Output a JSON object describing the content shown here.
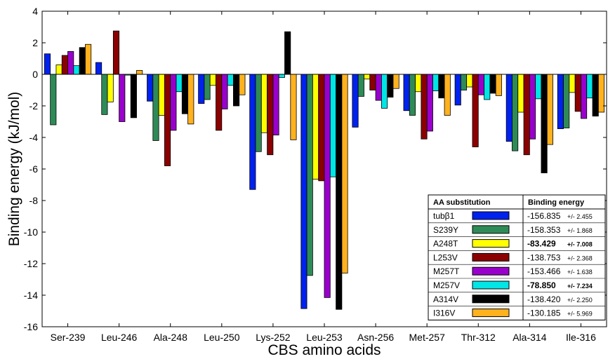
{
  "chart_data": {
    "type": "bar",
    "xlabel": "CBS amino acids",
    "ylabel": "Binding energy (kJ/mol)",
    "ylim": [
      -16,
      4
    ],
    "yticks": [
      4,
      2,
      0,
      -2,
      -4,
      -6,
      -8,
      -10,
      -12,
      -14,
      -16
    ],
    "grid": false,
    "categories": [
      "Ser-239",
      "Leu-246",
      "Ala-248",
      "Leu-250",
      "Lys-252",
      "Leu-253",
      "Asn-256",
      "Met-257",
      "Thr-312",
      "Ala-314",
      "Ile-316"
    ],
    "series": [
      {
        "name": "tubβ1",
        "color": "#0022ee",
        "values": [
          1.3,
          0.75,
          -1.7,
          -1.85,
          -7.3,
          -14.85,
          -3.35,
          -2.3,
          -1.95,
          -4.25,
          -3.45
        ]
      },
      {
        "name": "S239Y",
        "color": "#2e8b57",
        "values": [
          -3.2,
          -2.55,
          -4.2,
          -1.6,
          -4.9,
          -12.75,
          -1.4,
          -2.6,
          -1.0,
          -4.85,
          -3.4
        ]
      },
      {
        "name": "A248T",
        "color": "#ffff00",
        "values": [
          0.6,
          -1.75,
          -2.6,
          -0.7,
          -3.7,
          -6.65,
          -0.3,
          -1.1,
          -0.8,
          -2.4,
          -1.15
        ]
      },
      {
        "name": "L253V",
        "color": "#8b0000",
        "values": [
          1.2,
          2.75,
          -5.8,
          -3.55,
          -5.1,
          -6.75,
          -1.0,
          -4.1,
          -4.6,
          -5.1,
          -2.35
        ]
      },
      {
        "name": "M257T",
        "color": "#9900cc",
        "values": [
          1.45,
          -3.0,
          -3.55,
          -2.2,
          -3.85,
          -14.15,
          -1.65,
          -3.6,
          -1.3,
          -4.1,
          -2.8
        ]
      },
      {
        "name": "M257V",
        "color": "#00e5e5",
        "values": [
          0.55,
          -0.05,
          -1.1,
          -0.7,
          -0.2,
          -6.5,
          -2.15,
          -1.05,
          -1.6,
          -1.55,
          -1.5
        ]
      },
      {
        "name": "A314V",
        "color": "#000000",
        "values": [
          1.7,
          -2.75,
          -2.5,
          -2.0,
          2.7,
          -14.9,
          -1.45,
          -1.5,
          -1.2,
          -6.25,
          -2.65
        ]
      },
      {
        "name": "I316V",
        "color": "#ffb21e",
        "values": [
          1.9,
          0.25,
          -3.15,
          -1.3,
          -4.15,
          -12.6,
          -0.9,
          -2.6,
          -1.35,
          -4.45,
          -2.4
        ]
      }
    ],
    "legend": {
      "placement": "bottom-right",
      "header_substitution": "AA substitution",
      "header_energy": "Binding energy",
      "rows": [
        {
          "label": "tubβ1",
          "energy": "-156.835",
          "error": "+/- 2.455",
          "bold": false
        },
        {
          "label": "S239Y",
          "energy": "-158.353",
          "error": "+/- 1.868",
          "bold": false
        },
        {
          "label": "A248T",
          "energy": "-83.429",
          "error": "+/- 7.008",
          "bold": true
        },
        {
          "label": "L253V",
          "energy": "-138.753",
          "error": "+/- 2.368",
          "bold": false
        },
        {
          "label": "M257T",
          "energy": "-153.466",
          "error": "+/- 1.638",
          "bold": false
        },
        {
          "label": "M257V",
          "energy": "-78.850",
          "error": "+/- 7.234",
          "bold": true
        },
        {
          "label": "A314V",
          "energy": "-138.420",
          "error": "+/- 2.250",
          "bold": false
        },
        {
          "label": "I316V",
          "energy": "-130.185",
          "error": "+/- 5.969",
          "bold": false
        }
      ]
    }
  }
}
